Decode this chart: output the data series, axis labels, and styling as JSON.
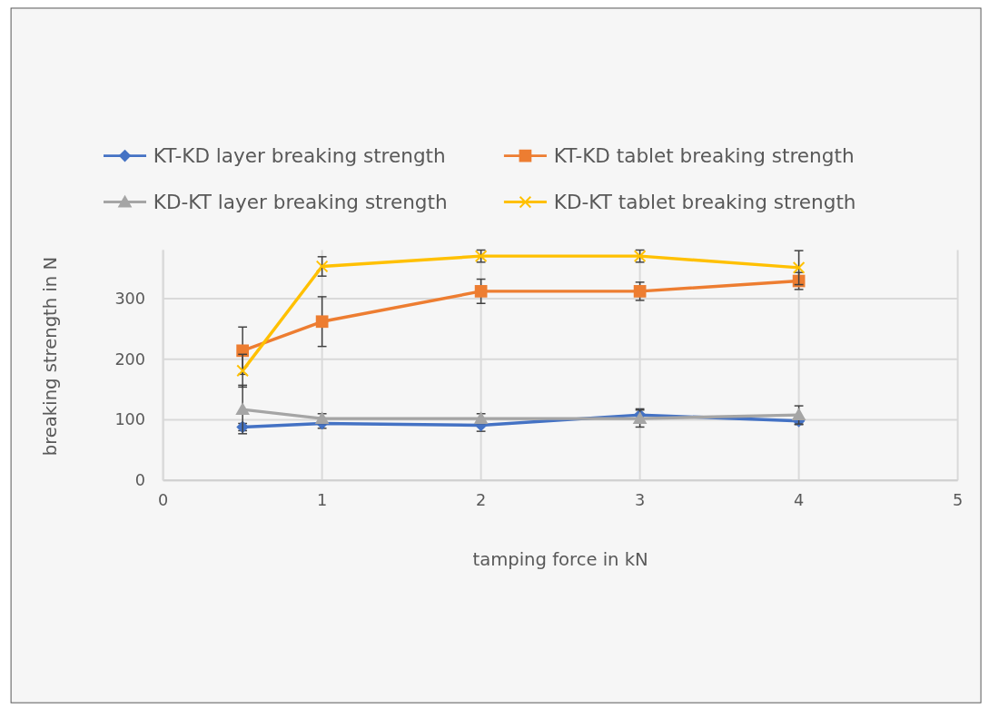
{
  "chart_data": {
    "type": "line",
    "xlabel": "tamping force in kN",
    "ylabel": "breaking strength in N",
    "x": [
      0.5,
      1,
      2,
      3,
      4
    ],
    "xlim": [
      0,
      5
    ],
    "xticks": [
      0,
      1,
      2,
      3,
      4,
      5
    ],
    "ylim": [
      0,
      380
    ],
    "yticks": [
      0,
      100,
      200,
      300
    ],
    "grid": true,
    "legend": "top",
    "series": [
      {
        "name": "KT-KD layer breaking strength",
        "color": "#4472c4",
        "marker": "diamond",
        "values": [
          88,
          94,
          91,
          108,
          98
        ],
        "errors": [
          6,
          8,
          10,
          10,
          6
        ]
      },
      {
        "name": "KT-KD tablet breaking strength",
        "color": "#ed7d31",
        "marker": "square",
        "values": [
          214,
          262,
          312,
          312,
          329
        ],
        "errors": [
          39,
          41,
          20,
          15,
          14
        ]
      },
      {
        "name": "KD-KT layer breaking strength",
        "color": "#a5a5a5",
        "marker": "triangle",
        "values": [
          117,
          102,
          102,
          102,
          108
        ],
        "errors": [
          40,
          8,
          8,
          14,
          15
        ]
      },
      {
        "name": "KD-KT tablet breaking strength",
        "color": "#ffc000",
        "marker": "cross",
        "values": [
          181,
          353,
          370,
          370,
          351
        ],
        "errors": [
          27,
          16,
          10,
          10,
          28
        ]
      }
    ]
  }
}
